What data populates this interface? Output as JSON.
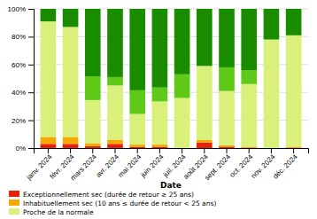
{
  "chart_data": {
    "type": "bar",
    "stacked": true,
    "xlabel": "Date",
    "categories": [
      "janv. 2024",
      "févr. 2024",
      "mars 2024",
      "avr. 2024",
      "mai 2024",
      "juin 2024",
      "juil. 2024",
      "août 2024",
      "sept. 2024",
      "oct. 2024",
      "nov. 2024",
      "déc. 2024"
    ],
    "series": [
      {
        "name": "Exceptionnellement sec (durée de retour ≥ 25 ans)",
        "color": "#e8210a",
        "values": [
          3,
          3,
          1.5,
          3,
          1,
          1,
          0,
          4,
          1,
          0,
          0,
          0
        ]
      },
      {
        "name": "Inhabituellement sec (10 ans ≤ durée de retour < 25 ans)",
        "color": "#f5a800",
        "values": [
          5,
          5,
          2,
          3,
          1.5,
          1.5,
          0,
          2,
          1,
          1,
          0,
          1
        ]
      },
      {
        "name": "Proche de la normale",
        "color": "#d9f07a",
        "values": [
          83,
          79,
          31,
          39,
          22,
          31,
          36,
          53,
          39,
          45,
          78,
          80
        ]
      },
      {
        "color": "#5ec916",
        "values": [
          0,
          0,
          17,
          6,
          17,
          10,
          17,
          0,
          17,
          10,
          0,
          0
        ]
      },
      {
        "color": "#1a8c00",
        "values": [
          9,
          13,
          48.5,
          49,
          58.5,
          56.5,
          47,
          41,
          42,
          44,
          22,
          19
        ]
      }
    ],
    "ylim": [
      0,
      100
    ],
    "yticks": [
      {
        "value": 0,
        "label": "0%"
      },
      {
        "value": 20,
        "label": "20%"
      },
      {
        "value": 40,
        "label": "40%"
      },
      {
        "value": 60,
        "label": "60%"
      },
      {
        "value": 80,
        "label": "80%"
      },
      {
        "value": 100,
        "label": "100%"
      }
    ],
    "grid": true,
    "legend": "bottom"
  }
}
